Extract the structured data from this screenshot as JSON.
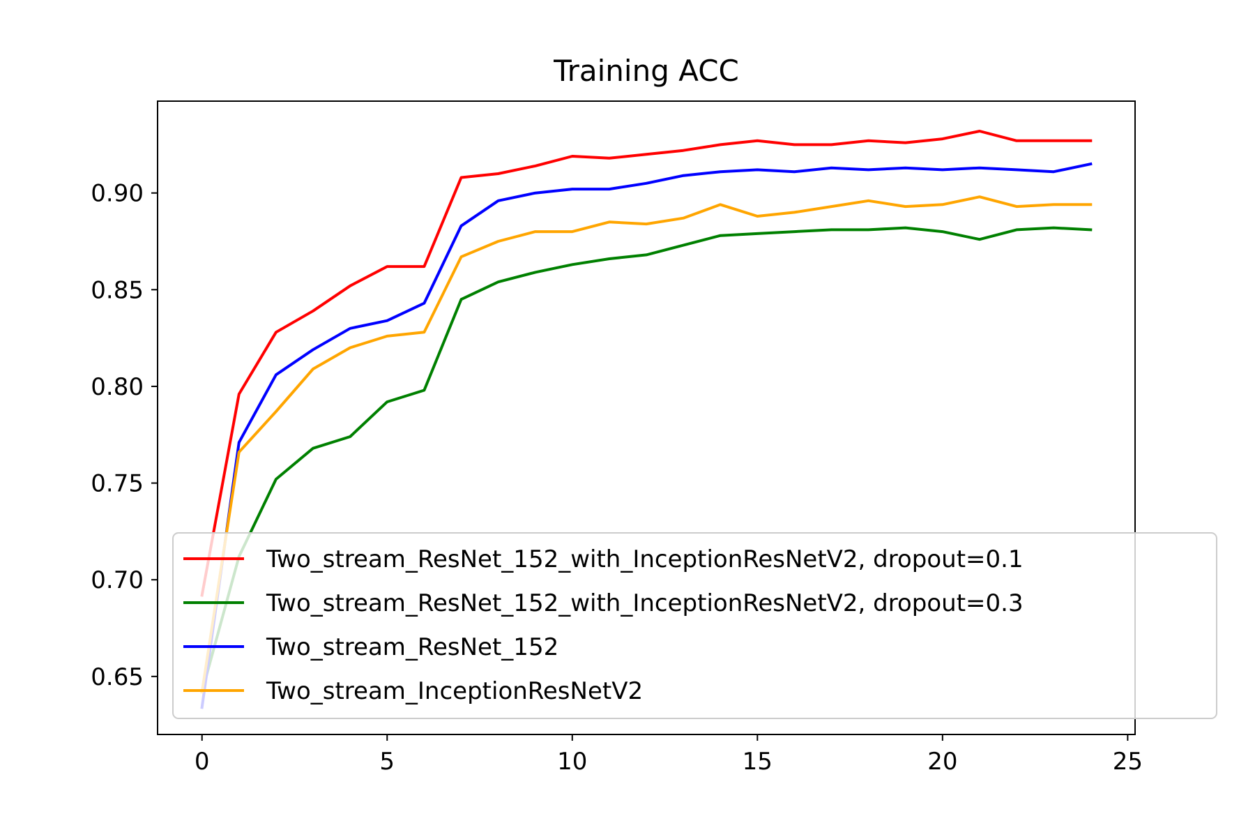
{
  "chart_data": {
    "type": "line",
    "title": "Training ACC",
    "xlabel": "",
    "ylabel": "",
    "xlim": [
      -1.2,
      25.2
    ],
    "ylim": [
      0.62,
      0.9475
    ],
    "xticks": [
      0,
      5,
      10,
      15,
      20,
      25
    ],
    "xtick_labels": [
      "0",
      "5",
      "10",
      "15",
      "20",
      "25"
    ],
    "yticks": [
      0.65,
      0.7,
      0.75,
      0.8,
      0.85,
      0.9
    ],
    "ytick_labels": [
      "0.65",
      "0.70",
      "0.75",
      "0.80",
      "0.85",
      "0.90"
    ],
    "grid": false,
    "legend_position": "lower-right",
    "x": [
      0,
      1,
      2,
      3,
      4,
      5,
      6,
      7,
      8,
      9,
      10,
      11,
      12,
      13,
      14,
      15,
      16,
      17,
      18,
      19,
      20,
      21,
      22,
      23,
      24
    ],
    "series": [
      {
        "name": "Two_stream_ResNet_152_with_InceptionResNetV2, dropout=0.1",
        "color": "#ff0000",
        "values": [
          0.692,
          0.796,
          0.828,
          0.839,
          0.852,
          0.862,
          0.862,
          0.908,
          0.91,
          0.914,
          0.919,
          0.918,
          0.92,
          0.922,
          0.925,
          0.927,
          0.925,
          0.925,
          0.927,
          0.926,
          0.928,
          0.932,
          0.927,
          0.927,
          0.927
        ]
      },
      {
        "name": "Two_stream_ResNet_152_with_InceptionResNetV2, dropout=0.3",
        "color": "#008000",
        "values": [
          0.642,
          0.712,
          0.752,
          0.768,
          0.774,
          0.792,
          0.798,
          0.845,
          0.854,
          0.859,
          0.863,
          0.866,
          0.868,
          0.873,
          0.878,
          0.879,
          0.88,
          0.881,
          0.881,
          0.882,
          0.88,
          0.876,
          0.881,
          0.882,
          0.881
        ]
      },
      {
        "name": "Two_stream_ResNet_152",
        "color": "#0000ff",
        "values": [
          0.634,
          0.771,
          0.806,
          0.819,
          0.83,
          0.834,
          0.843,
          0.883,
          0.896,
          0.9,
          0.902,
          0.902,
          0.905,
          0.909,
          0.911,
          0.912,
          0.911,
          0.913,
          0.912,
          0.913,
          0.912,
          0.913,
          0.912,
          0.911,
          0.915
        ]
      },
      {
        "name": "Two_stream_InceptionResNetV2",
        "color": "#ffa500",
        "values": [
          0.642,
          0.766,
          0.787,
          0.809,
          0.82,
          0.826,
          0.828,
          0.867,
          0.875,
          0.88,
          0.88,
          0.885,
          0.884,
          0.887,
          0.894,
          0.888,
          0.89,
          0.893,
          0.896,
          0.893,
          0.894,
          0.898,
          0.893,
          0.894,
          0.894
        ]
      }
    ]
  }
}
